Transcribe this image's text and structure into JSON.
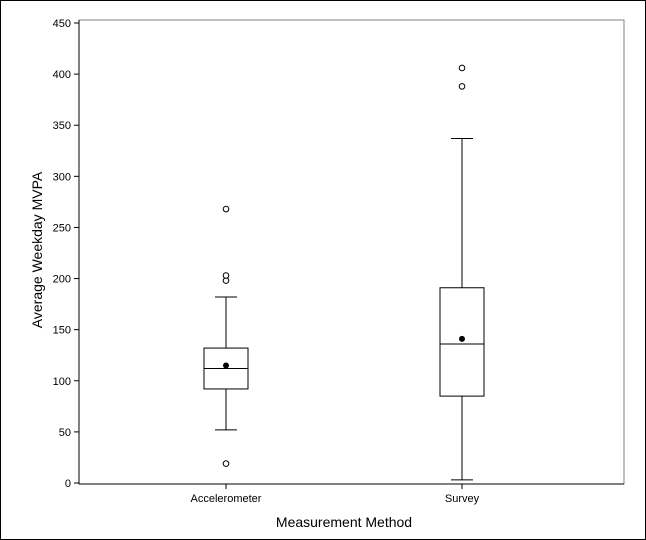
{
  "chart_data": {
    "type": "boxplot",
    "title": "",
    "xlabel": "Measurement Method",
    "ylabel": "Average Weekday MVPA",
    "ylim": [
      0,
      450
    ],
    "yticks": [
      0,
      50,
      100,
      150,
      200,
      250,
      300,
      350,
      400,
      450
    ],
    "ytick_labels": [
      "0",
      "50",
      "100",
      "150",
      "200",
      "250",
      "300",
      "350",
      "400",
      "450"
    ],
    "categories": [
      "Accelerometer",
      "Survey"
    ],
    "boxes": [
      {
        "category": "Accelerometer",
        "whisker_low": 52,
        "q1": 92,
        "median": 112,
        "q3": 132,
        "whisker_high": 182,
        "mean": 115,
        "outliers": [
          19,
          198,
          203,
          268
        ]
      },
      {
        "category": "Survey",
        "whisker_low": 3,
        "q1": 85,
        "median": 136,
        "q3": 191,
        "whisker_high": 337,
        "mean": 141,
        "outliers": [
          388,
          406
        ]
      }
    ],
    "grid": false,
    "colors": {
      "line": "#000000",
      "mean_marker": "#000000",
      "outlier_fill": "#ffffff"
    }
  }
}
